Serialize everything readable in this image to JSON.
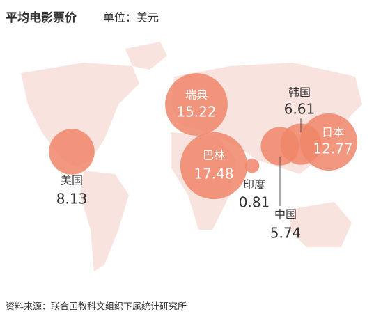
{
  "title": "平均电影票价",
  "unit": "单位：美元",
  "bubble_color": "#f0866a",
  "countries": [
    {
      "name": "美国",
      "value": 8.13
    },
    {
      "name": "瑞典",
      "value": 15.22
    },
    {
      "name": "巴林",
      "value": 17.48
    },
    {
      "name": "印度",
      "value": 0.81
    },
    {
      "name": "中国",
      "value": 5.74
    },
    {
      "name": "韩国",
      "value": 6.61
    },
    {
      "name": "日本",
      "value": 12.77
    }
  ],
  "source": "资料来源：联合国教科文组织下属统计研究所"
}
